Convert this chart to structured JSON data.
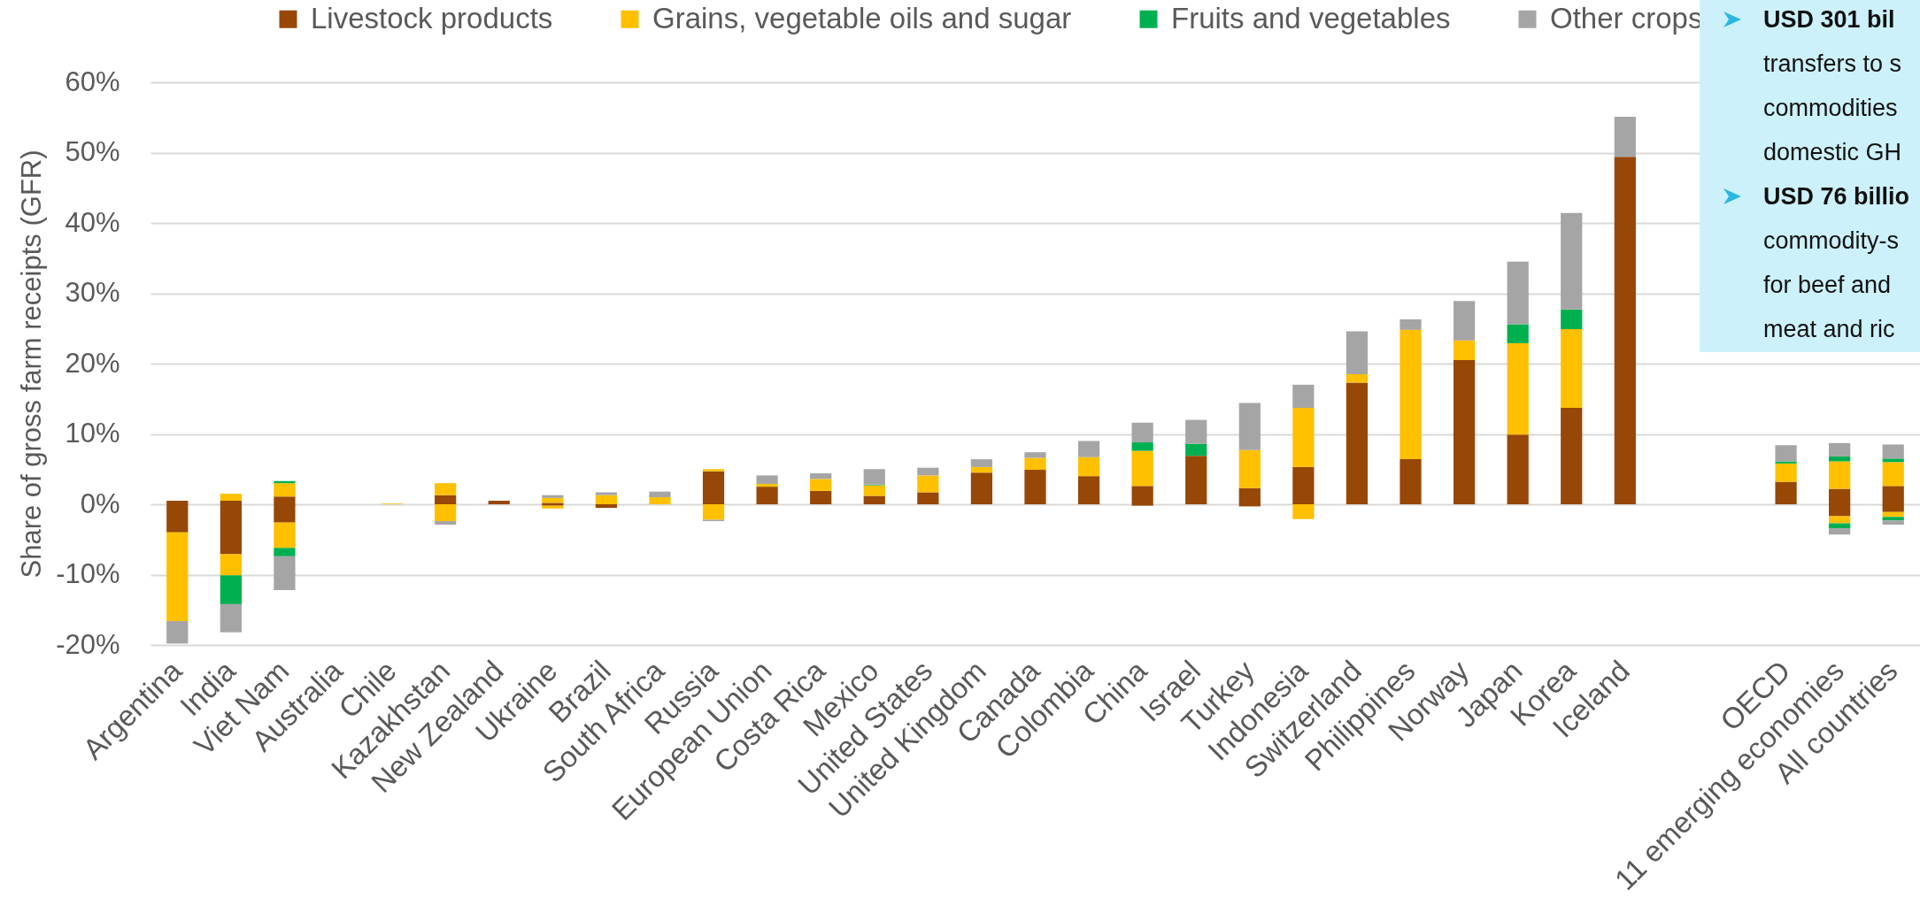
{
  "chart_data": {
    "type": "bar",
    "stacked": true,
    "ylabel": "Share of gross farm receipts (GFR)",
    "categories": [
      "Argentina",
      "India",
      "Viet Nam",
      "Australia",
      "Chile",
      "Kazakhstan",
      "New Zealand",
      "Ukraine",
      "Brazil",
      "South Africa",
      "Russia",
      "European Union",
      "Costa Rica",
      "Mexico",
      "United States",
      "United Kingdom",
      "Canada",
      "Colombia",
      "China",
      "Israel",
      "Turkey",
      "Indonesia",
      "Switzerland",
      "Philippines",
      "Norway",
      "Japan",
      "Korea",
      "Iceland",
      null,
      null,
      "OECD",
      "11 emerging economies",
      "All countries"
    ],
    "series": [
      {
        "name": "Livestock products",
        "color": "#974706",
        "values": [
          0.5,
          0.5,
          1.1,
          null,
          null,
          1.3,
          0.5,
          0.2,
          null,
          null,
          4.7,
          2.5,
          1.9,
          1.2,
          1.7,
          4.5,
          4.9,
          4.0,
          2.6,
          6.9,
          2.3,
          5.3,
          17.3,
          6.4,
          20.5,
          9.9,
          13.7,
          49.4,
          null,
          null,
          3.2,
          2.2,
          2.6
        ]
      },
      {
        "name": "Grains, vegetable oils and sugar",
        "color": "#ffc000",
        "values": [
          null,
          1.0,
          1.9,
          null,
          0.1,
          1.7,
          null,
          0.7,
          1.3,
          1.0,
          0.3,
          0.4,
          1.7,
          1.5,
          2.4,
          0.8,
          1.7,
          2.7,
          5.0,
          null,
          5.4,
          8.4,
          1.2,
          18.4,
          2.8,
          13.0,
          11.2,
          null,
          null,
          null,
          2.6,
          3.9,
          3.4
        ]
      },
      {
        "name": "Fruits and vegetables",
        "color": "#00b050",
        "values": [
          null,
          null,
          0.3,
          null,
          null,
          null,
          null,
          null,
          null,
          null,
          null,
          null,
          null,
          0.1,
          null,
          null,
          null,
          null,
          1.2,
          1.7,
          null,
          null,
          null,
          null,
          null,
          2.7,
          2.8,
          null,
          null,
          null,
          0.3,
          0.7,
          0.5
        ]
      },
      {
        "name": "Other crops",
        "color": "#a5a5a5",
        "values": [
          null,
          null,
          null,
          null,
          null,
          null,
          null,
          0.4,
          0.4,
          0.8,
          null,
          1.2,
          0.8,
          2.2,
          1.1,
          1.1,
          0.8,
          2.3,
          2.8,
          3.4,
          6.7,
          3.3,
          6.1,
          1.5,
          5.6,
          8.9,
          13.7,
          5.7,
          null,
          null,
          2.3,
          1.9,
          2.0
        ]
      },
      {
        "color": "#974706",
        "values": [
          -4.0,
          -7.1,
          -2.6,
          null,
          null,
          null,
          null,
          -0.2,
          -0.5,
          null,
          null,
          null,
          null,
          null,
          null,
          null,
          null,
          null,
          -0.2,
          null,
          -0.3,
          null,
          null,
          null,
          null,
          null,
          null,
          null,
          null,
          null,
          null,
          -1.7,
          -1.1
        ]
      },
      {
        "color": "#ffc000",
        "values": [
          -12.6,
          -3.0,
          -3.6,
          null,
          null,
          -2.4,
          null,
          -0.4,
          null,
          null,
          -2.2,
          null,
          null,
          null,
          null,
          null,
          null,
          null,
          null,
          null,
          null,
          -2.1,
          null,
          null,
          null,
          null,
          null,
          null,
          null,
          null,
          null,
          -1.0,
          -0.7
        ]
      },
      {
        "color": "#00b050",
        "values": [
          null,
          -4.1,
          -1.2,
          null,
          null,
          null,
          null,
          null,
          null,
          null,
          null,
          null,
          null,
          null,
          null,
          null,
          null,
          null,
          null,
          null,
          null,
          null,
          null,
          null,
          null,
          null,
          null,
          null,
          null,
          null,
          null,
          -0.7,
          -0.5
        ]
      },
      {
        "color": "#a5a5a5",
        "values": [
          -3.2,
          -4.0,
          -4.8,
          null,
          null,
          -0.5,
          null,
          null,
          null,
          null,
          -0.2,
          null,
          null,
          null,
          null,
          null,
          null,
          null,
          null,
          null,
          null,
          null,
          null,
          null,
          null,
          null,
          null,
          null,
          null,
          null,
          null,
          -0.9,
          -0.6
        ]
      }
    ],
    "ylim": [
      -20,
      60
    ],
    "yticks": [
      {
        "value": -20,
        "label": "-20%"
      },
      {
        "value": -10,
        "label": "-10%"
      },
      {
        "value": 0,
        "label": "0%"
      },
      {
        "value": 10,
        "label": "10%"
      },
      {
        "value": 20,
        "label": "20%"
      },
      {
        "value": 30,
        "label": "30%"
      },
      {
        "value": 40,
        "label": "40%"
      },
      {
        "value": 50,
        "label": "50%"
      },
      {
        "value": 60,
        "label": "60%"
      }
    ],
    "grid": "y",
    "legend": "top",
    "annotations": [
      "USD 301 bil",
      "transfers to s",
      "commodities",
      "domestic GH",
      "USD 76 billio",
      "commodity-s",
      "for beef and",
      "meat and ric"
    ]
  }
}
